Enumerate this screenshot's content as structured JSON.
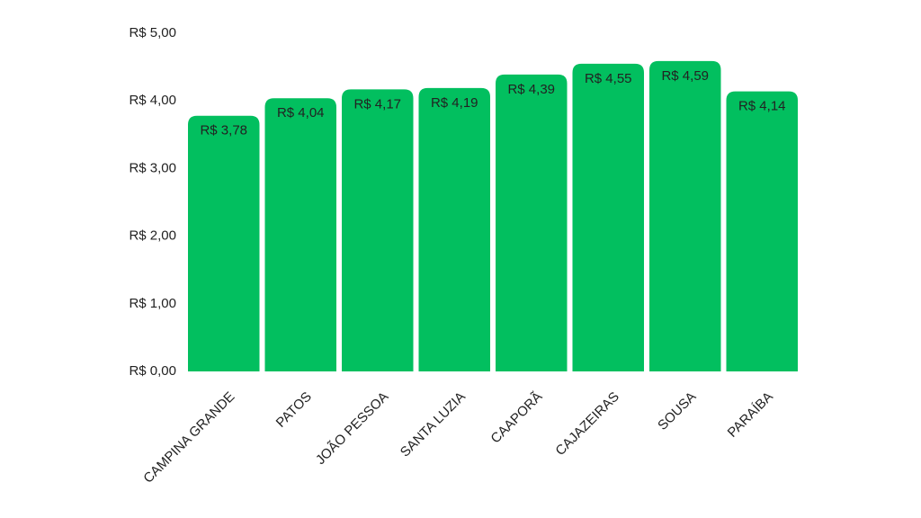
{
  "chart_data": {
    "type": "bar",
    "categories": [
      "CAMPINA GRANDE",
      "PATOS",
      "JOÃO PESSOA",
      "SANTA LUZIA",
      "CAAPORÃ",
      "CAJAZEIRAS",
      "SOUSA",
      "PARAÍBA"
    ],
    "values": [
      3.78,
      4.04,
      4.17,
      4.19,
      4.39,
      4.55,
      4.59,
      4.14
    ],
    "value_labels": [
      "R$ 3,78",
      "R$ 4,04",
      "R$ 4,17",
      "R$ 4,19",
      "R$ 4,39",
      "R$ 4,55",
      "R$ 4,59",
      "R$ 4,14"
    ],
    "color": "#02bf5f",
    "ylim": [
      0,
      5
    ],
    "yticks": [
      {
        "value": 0,
        "label": "R$ 0,00"
      },
      {
        "value": 1,
        "label": "R$ 1,00"
      },
      {
        "value": 2,
        "label": "R$ 2,00"
      },
      {
        "value": 3,
        "label": "R$ 3,00"
      },
      {
        "value": 4,
        "label": "R$ 4,00"
      },
      {
        "value": 5,
        "label": "R$ 5,00"
      }
    ],
    "grid": false
  }
}
